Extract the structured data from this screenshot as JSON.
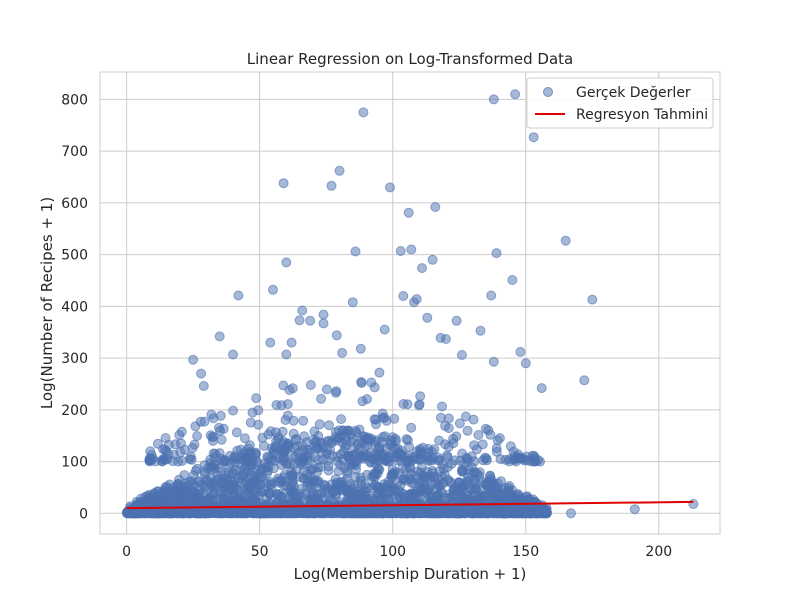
{
  "chart_data": {
    "type": "scatter",
    "title": "Linear Regression on Log-Transformed Data",
    "xlabel": "Log(Membership Duration + 1)",
    "ylabel": "Log(Number of Recipes + 1)",
    "xlim": [
      -10,
      223
    ],
    "ylim": [
      -40,
      853
    ],
    "x_ticks": [
      0,
      50,
      100,
      150,
      200
    ],
    "y_ticks": [
      0,
      100,
      200,
      300,
      400,
      500,
      600,
      700,
      800
    ],
    "grid": true,
    "legend_position": "top-right",
    "colors": {
      "points": "#4c72b0",
      "regression": "#e00000",
      "grid": "#cccccc",
      "frame": "#cccccc"
    },
    "series": [
      {
        "name": "Gerçek Değerler",
        "kind": "scatter",
        "points": [
          [
            146,
            810
          ],
          [
            138,
            800
          ],
          [
            89,
            775
          ],
          [
            153,
            727
          ],
          [
            80,
            662
          ],
          [
            59,
            638
          ],
          [
            77,
            633
          ],
          [
            99,
            630
          ],
          [
            106,
            581
          ],
          [
            116,
            592
          ],
          [
            165,
            527
          ],
          [
            103,
            507
          ],
          [
            107,
            510
          ],
          [
            86,
            506
          ],
          [
            139,
            503
          ],
          [
            60,
            485
          ],
          [
            115,
            490
          ],
          [
            111,
            474
          ],
          [
            145,
            451
          ],
          [
            42,
            421
          ],
          [
            104,
            420
          ],
          [
            137,
            421
          ],
          [
            55,
            432
          ],
          [
            175,
            413
          ],
          [
            108,
            408
          ],
          [
            109,
            414
          ],
          [
            85,
            408
          ],
          [
            124,
            372
          ],
          [
            113,
            378
          ],
          [
            97,
            355
          ],
          [
            133,
            353
          ],
          [
            74,
            384
          ],
          [
            66,
            392
          ],
          [
            69,
            372
          ],
          [
            148,
            312
          ],
          [
            62,
            330
          ],
          [
            118,
            339
          ],
          [
            79,
            344
          ],
          [
            95,
            272
          ],
          [
            54,
            330
          ],
          [
            88,
            318
          ],
          [
            126,
            306
          ],
          [
            138,
            293
          ],
          [
            156,
            242
          ],
          [
            172,
            257
          ],
          [
            35,
            342
          ],
          [
            25,
            297
          ],
          [
            28,
            270
          ],
          [
            29,
            246
          ],
          [
            40,
            307
          ],
          [
            81,
            310
          ],
          [
            60,
            307
          ],
          [
            150,
            290
          ],
          [
            120,
            337
          ],
          [
            74,
            367
          ],
          [
            65,
            373
          ]
        ],
        "summary": "Thousands of points densely clustered between roughly x=0–160 and y=0–150, thinning upward; sparse outliers up to y≈810; isolated points near x=167, 191, 213 at small y."
      },
      {
        "name": "Regresyon Tahmini",
        "kind": "line",
        "x": [
          0,
          213
        ],
        "y": [
          10,
          22
        ]
      }
    ]
  }
}
